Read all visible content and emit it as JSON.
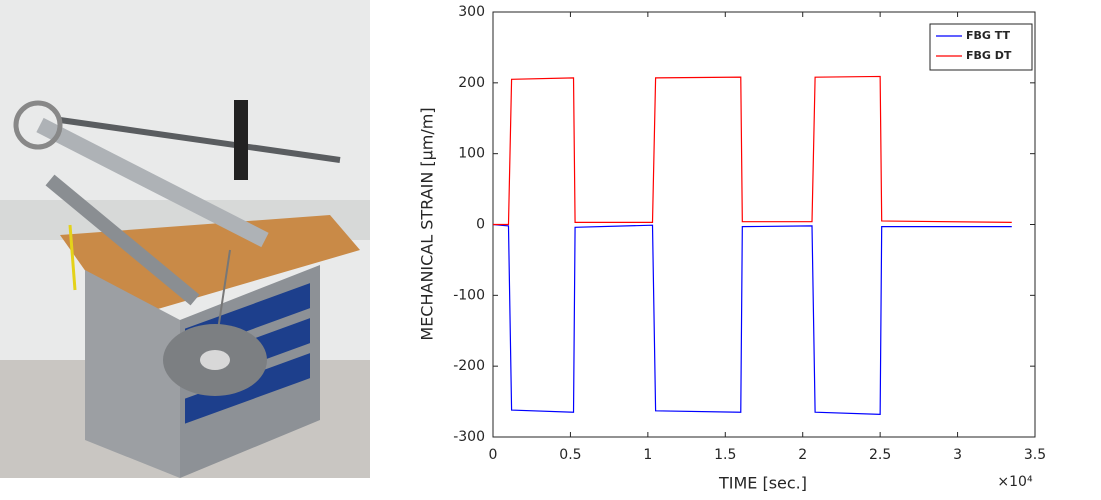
{
  "chart_data": {
    "type": "line",
    "xlabel": "TIME [sec.]",
    "ylabel": "MECHANICAL STRAIN [µm/m]",
    "x_multiplier": "×10⁴",
    "x": [
      0,
      0.1,
      0.12,
      0.52,
      0.53,
      1.03,
      1.05,
      1.6,
      1.61,
      2.06,
      2.08,
      2.5,
      2.51,
      3.35
    ],
    "series": [
      {
        "name": "FBG TT",
        "color": "#0000ff",
        "values": [
          0,
          -2,
          -262,
          -265,
          -4,
          -1,
          -263,
          -265,
          -3,
          -2,
          -265,
          -268,
          -3,
          -3
        ]
      },
      {
        "name": "FBG DT",
        "color": "#ff0000",
        "values": [
          0,
          0,
          205,
          207,
          3,
          3,
          207,
          208,
          4,
          4,
          208,
          209,
          5,
          3
        ]
      }
    ],
    "xlim": [
      0,
      3.5
    ],
    "xticks": [
      0,
      0.5,
      1,
      1.5,
      2,
      2.5,
      3,
      3.5
    ],
    "ylim": [
      -300,
      300
    ],
    "yticks": [
      -300,
      -200,
      -100,
      0,
      100,
      200,
      300
    ],
    "legend": "upper-right",
    "grid": false
  }
}
